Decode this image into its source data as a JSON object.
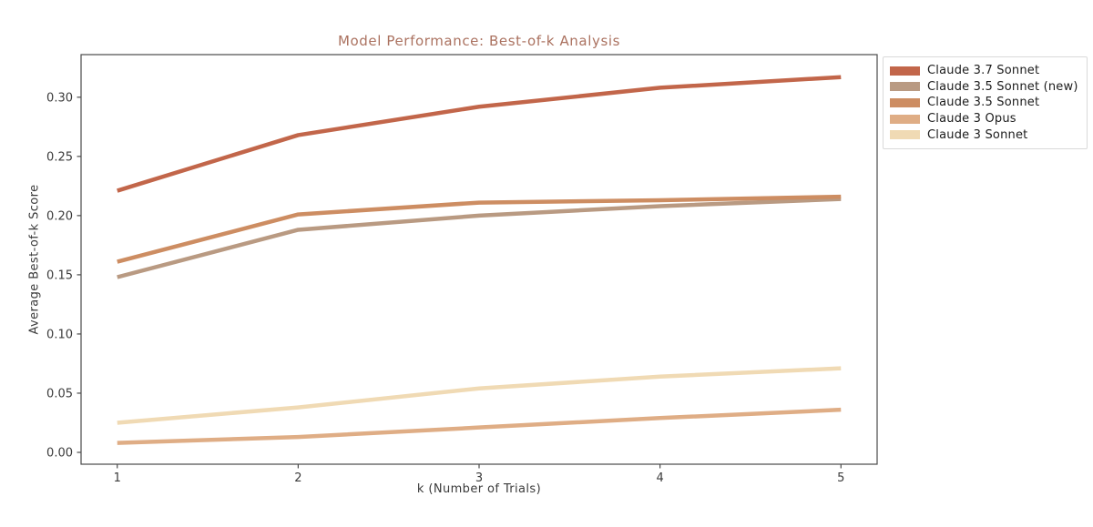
{
  "chart_data": {
    "type": "line",
    "title": "Model Performance: Best-of-k Analysis",
    "xlabel": "k (Number of Trials)",
    "ylabel": "Average Best-of-k Score",
    "x": [
      1,
      2,
      3,
      4,
      5
    ],
    "xticks": [
      1,
      2,
      3,
      4,
      5
    ],
    "yticks": [
      0.0,
      0.05,
      0.1,
      0.15,
      0.2,
      0.25,
      0.3
    ],
    "xlim": [
      0.8,
      5.2
    ],
    "ylim": [
      -0.01,
      0.336
    ],
    "grid": false,
    "legend_position": "outside upper right",
    "series": [
      {
        "name": "Claude 3.7 Sonnet",
        "color": "#c2664a",
        "values": [
          0.221,
          0.268,
          0.292,
          0.308,
          0.317
        ]
      },
      {
        "name": "Claude 3.5 Sonnet (new)",
        "color": "#b99a82",
        "values": [
          0.148,
          0.188,
          0.2,
          0.208,
          0.214
        ]
      },
      {
        "name": "Claude 3.5 Sonnet",
        "color": "#cd8d62",
        "values": [
          0.161,
          0.201,
          0.211,
          0.213,
          0.216
        ]
      },
      {
        "name": "Claude 3 Opus",
        "color": "#dfad85",
        "values": [
          0.008,
          0.013,
          0.021,
          0.029,
          0.036
        ]
      },
      {
        "name": "Claude 3 Sonnet",
        "color": "#f0dab4",
        "values": [
          0.025,
          0.038,
          0.054,
          0.064,
          0.071
        ]
      }
    ]
  },
  "style": {
    "title_color": "#ab7260",
    "axis_color": "#4a4a4a",
    "tick_text_color": "#3b3b3b",
    "legend_border_color": "#d9d9d9",
    "background": "#ffffff",
    "line_width": 4.5
  }
}
